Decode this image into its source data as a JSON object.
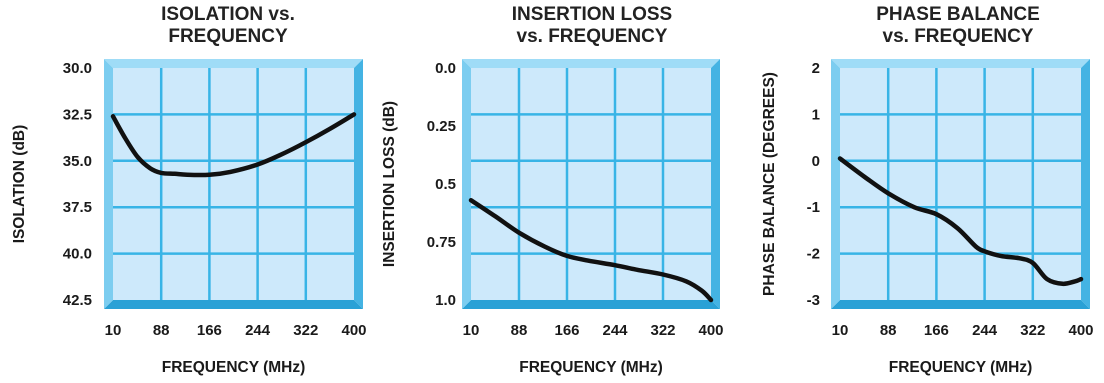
{
  "colors": {
    "plot_bg": "#cde9fb",
    "grid": "#38b4e6",
    "bevel_top": "#9fdcf7",
    "bevel_right": "#44b3e3",
    "bevel_bottom": "#2aa1d6",
    "bevel_left": "#7ccdf0",
    "curve": "#111111"
  },
  "chart_data": [
    {
      "type": "line",
      "title_lines": [
        "ISOLATION vs.",
        "FREQUENCY"
      ],
      "xlabel": "FREQUENCY (MHz)",
      "ylabel": "ISOLATION (dB)",
      "x_ticks": [
        "10",
        "88",
        "166",
        "244",
        "322",
        "400"
      ],
      "y_ticks": [
        "30.0",
        "32.5",
        "35.0",
        "37.5",
        "40.0",
        "42.5"
      ],
      "xlim": [
        10,
        400
      ],
      "ylim": [
        30.0,
        42.5
      ],
      "y_inverted": true,
      "grid": true,
      "series": [
        {
          "x": [
            10,
            30,
            50,
            70,
            88,
            110,
            130,
            166,
            200,
            244,
            280,
            322,
            360,
            400
          ],
          "values": [
            32.6,
            33.8,
            34.8,
            35.4,
            35.65,
            35.7,
            35.75,
            35.75,
            35.6,
            35.2,
            34.7,
            34.0,
            33.3,
            32.5
          ]
        }
      ]
    },
    {
      "type": "line",
      "title_lines": [
        "INSERTION LOSS",
        "vs. FREQUENCY"
      ],
      "xlabel": "FREQUENCY (MHz)",
      "ylabel": "INSERTION LOSS (dB)",
      "x_ticks": [
        "10",
        "88",
        "166",
        "244",
        "322",
        "400"
      ],
      "y_ticks": [
        "0.0",
        "0.25",
        "0.5",
        "0.75",
        "1.0"
      ],
      "xlim": [
        10,
        400
      ],
      "ylim": [
        0.0,
        1.0
      ],
      "y_inverted": true,
      "grid": true,
      "series": [
        {
          "x": [
            10,
            50,
            88,
            130,
            166,
            200,
            244,
            280,
            322,
            360,
            385,
            400
          ],
          "values": [
            0.57,
            0.64,
            0.71,
            0.77,
            0.81,
            0.83,
            0.85,
            0.87,
            0.89,
            0.92,
            0.96,
            1.0
          ]
        }
      ]
    },
    {
      "type": "line",
      "title_lines": [
        "PHASE BALANCE",
        "vs. FREQUENCY"
      ],
      "xlabel": "FREQUENCY (MHz)",
      "ylabel": "PHASE BALANCE (DEGREES)",
      "x_ticks": [
        "10",
        "88",
        "166",
        "244",
        "322",
        "400"
      ],
      "y_ticks": [
        "2",
        "1",
        "0",
        "-1",
        "-2",
        "-3"
      ],
      "xlim": [
        10,
        400
      ],
      "ylim": [
        2,
        -3
      ],
      "y_inverted": false,
      "grid": true,
      "series": [
        {
          "x": [
            10,
            50,
            88,
            130,
            166,
            200,
            230,
            244,
            270,
            300,
            322,
            345,
            370,
            390,
            400
          ],
          "values": [
            0.05,
            -0.35,
            -0.7,
            -1.0,
            -1.15,
            -1.45,
            -1.85,
            -1.95,
            -2.05,
            -2.1,
            -2.2,
            -2.55,
            -2.65,
            -2.6,
            -2.55
          ]
        }
      ]
    }
  ]
}
